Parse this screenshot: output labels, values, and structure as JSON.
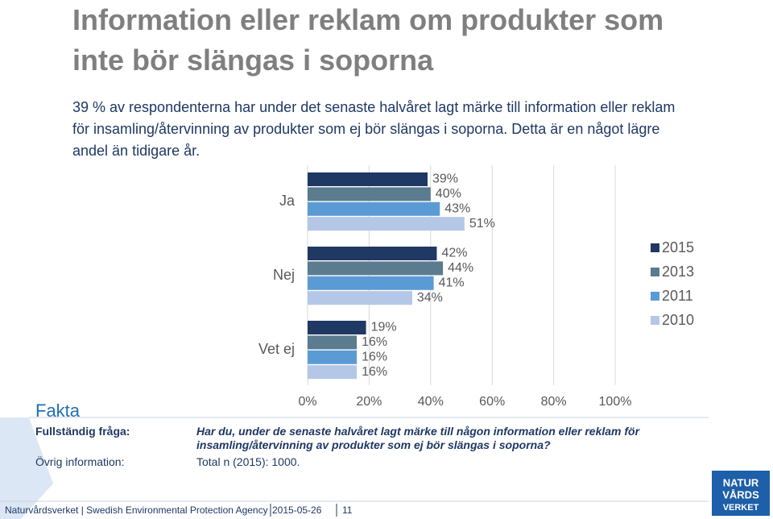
{
  "slide": {
    "title": "Information eller reklam om produkter som inte bör slängas i soporna",
    "intro": "39 % av respondenterna har under det senaste halvåret lagt märke till information eller reklam för insamling/återvinning av produkter som ej bör slängas i soporna. Detta är en något lägre andel än tidigare år.",
    "fakta": {
      "heading": "Fakta",
      "rows": [
        {
          "label": "Fullständig fråga:",
          "text": "Har du, under de senaste halvåret lagt märke till någon information eller reklam för insamling/återvinning av produkter som ej bör slängas i soporna?"
        },
        {
          "label": "Övrig information:",
          "text": "Total n (2015): 1000."
        }
      ]
    },
    "footer": {
      "org": "Naturvårdsverket | Swedish Environmental Protection Agency",
      "date": "2015-05-26",
      "page": "11"
    },
    "logo": [
      "NATUR",
      "VÅRDS",
      "VERKET"
    ]
  },
  "chart_data": {
    "type": "bar",
    "orientation": "horizontal",
    "categories": [
      "Ja",
      "Nej",
      "Vet ej"
    ],
    "series": [
      {
        "name": "2015",
        "color": "#1f3864",
        "values": [
          39,
          42,
          19
        ],
        "value_labels": [
          "39%",
          "42%",
          "19%"
        ]
      },
      {
        "name": "2013",
        "color": "#5b7b8e",
        "values": [
          40,
          44,
          16
        ],
        "value_labels": [
          "40%",
          "44%",
          "16%"
        ]
      },
      {
        "name": "2011",
        "color": "#5b9bd5",
        "values": [
          43,
          41,
          16
        ],
        "value_labels": [
          "43%",
          "41%",
          "16%"
        ]
      },
      {
        "name": "2010",
        "color": "#b4c7e7",
        "values": [
          51,
          34,
          16
        ],
        "value_labels": [
          "51%",
          "34%",
          "16%"
        ]
      }
    ],
    "xlim": [
      0,
      100
    ],
    "xticks": [
      {
        "value": 0,
        "label": "0%"
      },
      {
        "value": 20,
        "label": "20%"
      },
      {
        "value": 40,
        "label": "40%"
      },
      {
        "value": 60,
        "label": "60%"
      },
      {
        "value": 80,
        "label": "80%"
      },
      {
        "value": 100,
        "label": "100%"
      }
    ],
    "grid": true,
    "legend": "right"
  }
}
